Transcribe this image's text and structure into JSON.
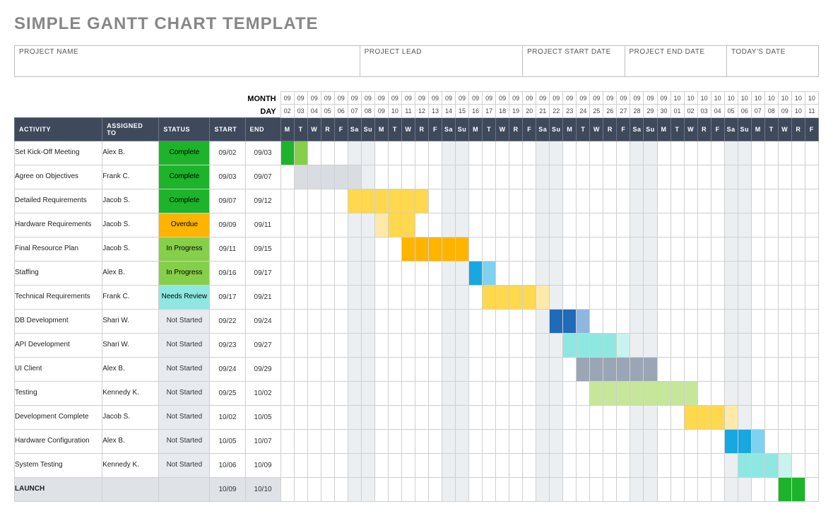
{
  "title": "SIMPLE GANTT CHART TEMPLATE",
  "header_fields": [
    {
      "label": "PROJECT NAME",
      "flex": 3.4
    },
    {
      "label": "PROJECT LEAD",
      "flex": 1.6
    },
    {
      "label": "PROJECT START DATE",
      "flex": 1
    },
    {
      "label": "PROJECT END DATE",
      "flex": 1
    },
    {
      "label": "TODAY'S DATE",
      "flex": 0.9
    }
  ],
  "month_label": "MONTH",
  "day_label": "DAY",
  "columns": {
    "activity": "ACTIVITY",
    "assigned": "ASSIGNED TO",
    "status": "STATUS",
    "start": "START",
    "end": "END"
  },
  "calendar": {
    "months": [
      "09",
      "09",
      "09",
      "09",
      "09",
      "09",
      "09",
      "09",
      "09",
      "09",
      "09",
      "09",
      "09",
      "09",
      "09",
      "09",
      "09",
      "09",
      "09",
      "09",
      "09",
      "09",
      "09",
      "09",
      "09",
      "09",
      "09",
      "09",
      "09",
      "10",
      "10",
      "10",
      "10",
      "10",
      "10",
      "10",
      "10",
      "10",
      "10",
      "10"
    ],
    "days": [
      "02",
      "03",
      "04",
      "05",
      "06",
      "07",
      "08",
      "09",
      "10",
      "11",
      "12",
      "13",
      "14",
      "15",
      "16",
      "17",
      "18",
      "19",
      "20",
      "21",
      "22",
      "23",
      "24",
      "25",
      "26",
      "27",
      "28",
      "29",
      "30",
      "01",
      "02",
      "03",
      "04",
      "05",
      "06",
      "07",
      "08",
      "09",
      "10",
      "11"
    ],
    "dows": [
      "M",
      "T",
      "W",
      "R",
      "F",
      "Sa",
      "Su",
      "M",
      "T",
      "W",
      "R",
      "F",
      "Sa",
      "Su",
      "M",
      "T",
      "W",
      "R",
      "F",
      "Sa",
      "Su",
      "M",
      "T",
      "W",
      "R",
      "F",
      "Sa",
      "Su",
      "M",
      "T",
      "W",
      "R",
      "F",
      "Sa",
      "Su",
      "M",
      "T",
      "W",
      "R",
      "F"
    ],
    "weekend_idx": [
      5,
      6,
      12,
      13,
      19,
      20,
      26,
      27,
      33,
      34
    ]
  },
  "status_colors": {
    "Complete": {
      "bg": "#1db32a",
      "fg": "#000000"
    },
    "Overdue": {
      "bg": "#ffb400",
      "fg": "#000000"
    },
    "In Progress": {
      "bg": "#86cf4a",
      "fg": "#000000"
    },
    "Needs Review": {
      "bg": "#8ee8e1",
      "fg": "#000000"
    },
    "Not Started": {
      "bg": "#e7ebef",
      "fg": "#333333"
    },
    "": {
      "bg": "#dfe3e8",
      "fg": "#333333"
    }
  },
  "tasks": [
    {
      "activity": "Set Kick-Off Meeting",
      "assigned": "Alex B.",
      "status": "Complete",
      "start": "09/02",
      "end": "09/03",
      "bars": [
        {
          "start_idx": 0,
          "len": 1,
          "color": "#1db32a"
        },
        {
          "start_idx": 1,
          "len": 1,
          "color": "#86cf4a"
        }
      ]
    },
    {
      "activity": "Agree on Objectives",
      "assigned": "Frank C.",
      "status": "Complete",
      "start": "09/03",
      "end": "09/07",
      "bars": [
        {
          "start_idx": 1,
          "len": 5,
          "color": "#d9dde2"
        }
      ]
    },
    {
      "activity": "Detailed Requirements",
      "assigned": "Jacob S.",
      "status": "Complete",
      "start": "09/07",
      "end": "09/12",
      "bars": [
        {
          "start_idx": 5,
          "len": 6,
          "color": "#ffd84d"
        }
      ]
    },
    {
      "activity": "Hardware Requirements",
      "assigned": "Jacob S.",
      "status": "Overdue",
      "start": "09/09",
      "end": "09/11",
      "bars": [
        {
          "start_idx": 7,
          "len": 1,
          "color": "#ffe9a8"
        },
        {
          "start_idx": 8,
          "len": 2,
          "color": "#ffd84d"
        }
      ]
    },
    {
      "activity": "Final Resource Plan",
      "assigned": "Jacob S.",
      "status": "In Progress",
      "start": "09/11",
      "end": "09/15",
      "bars": [
        {
          "start_idx": 9,
          "len": 5,
          "color": "#ffb400"
        }
      ]
    },
    {
      "activity": "Staffing",
      "assigned": "Alex B.",
      "status": "In Progress",
      "start": "09/16",
      "end": "09/17",
      "bars": [
        {
          "start_idx": 14,
          "len": 1,
          "color": "#18a7e0"
        },
        {
          "start_idx": 15,
          "len": 1,
          "color": "#7fd2ef"
        }
      ]
    },
    {
      "activity": "Technical Requirements",
      "assigned": "Frank C.",
      "status": "Needs Review",
      "start": "09/17",
      "end": "09/21",
      "bars": [
        {
          "start_idx": 15,
          "len": 4,
          "color": "#ffd84d"
        },
        {
          "start_idx": 19,
          "len": 1,
          "color": "#ffe9a8"
        }
      ]
    },
    {
      "activity": "DB Development",
      "assigned": "Shari W.",
      "status": "Not Started",
      "start": "09/22",
      "end": "09/24",
      "bars": [
        {
          "start_idx": 20,
          "len": 2,
          "color": "#1e6bb8"
        },
        {
          "start_idx": 22,
          "len": 1,
          "color": "#8fb6dd"
        }
      ]
    },
    {
      "activity": "API Development",
      "assigned": "Shari W.",
      "status": "Not Started",
      "start": "09/23",
      "end": "09/27",
      "bars": [
        {
          "start_idx": 21,
          "len": 4,
          "color": "#8ee8e1"
        },
        {
          "start_idx": 25,
          "len": 1,
          "color": "#c9f3ef"
        }
      ]
    },
    {
      "activity": "UI Client",
      "assigned": "Alex B.",
      "status": "Not Started",
      "start": "09/24",
      "end": "09/29",
      "bars": [
        {
          "start_idx": 22,
          "len": 6,
          "color": "#9aa6b5"
        }
      ]
    },
    {
      "activity": "Testing",
      "assigned": "Kennedy K.",
      "status": "Not Started",
      "start": "09/25",
      "end": "10/02",
      "bars": [
        {
          "start_idx": 23,
          "len": 8,
          "color": "#c6e79a"
        }
      ]
    },
    {
      "activity": "Development Complete",
      "assigned": "Jacob S.",
      "status": "Not Started",
      "start": "10/02",
      "end": "10/05",
      "bars": [
        {
          "start_idx": 30,
          "len": 3,
          "color": "#ffd84d"
        },
        {
          "start_idx": 33,
          "len": 1,
          "color": "#ffe9a8"
        }
      ]
    },
    {
      "activity": "Hardware Configuration",
      "assigned": "Alex B.",
      "status": "Not Started",
      "start": "10/05",
      "end": "10/07",
      "bars": [
        {
          "start_idx": 33,
          "len": 2,
          "color": "#18a7e0"
        },
        {
          "start_idx": 35,
          "len": 1,
          "color": "#7fd2ef"
        }
      ]
    },
    {
      "activity": "System Testing",
      "assigned": "Kennedy K.",
      "status": "Not Started",
      "start": "10/06",
      "end": "10/09",
      "bars": [
        {
          "start_idx": 34,
          "len": 3,
          "color": "#8ee8e1"
        },
        {
          "start_idx": 37,
          "len": 1,
          "color": "#c9f3ef"
        }
      ]
    },
    {
      "activity": "LAUNCH",
      "assigned": "",
      "status": "",
      "start": "10/09",
      "end": "10/10",
      "launch": true,
      "bars": [
        {
          "start_idx": 37,
          "len": 2,
          "color": "#1db32a"
        }
      ]
    }
  ]
}
